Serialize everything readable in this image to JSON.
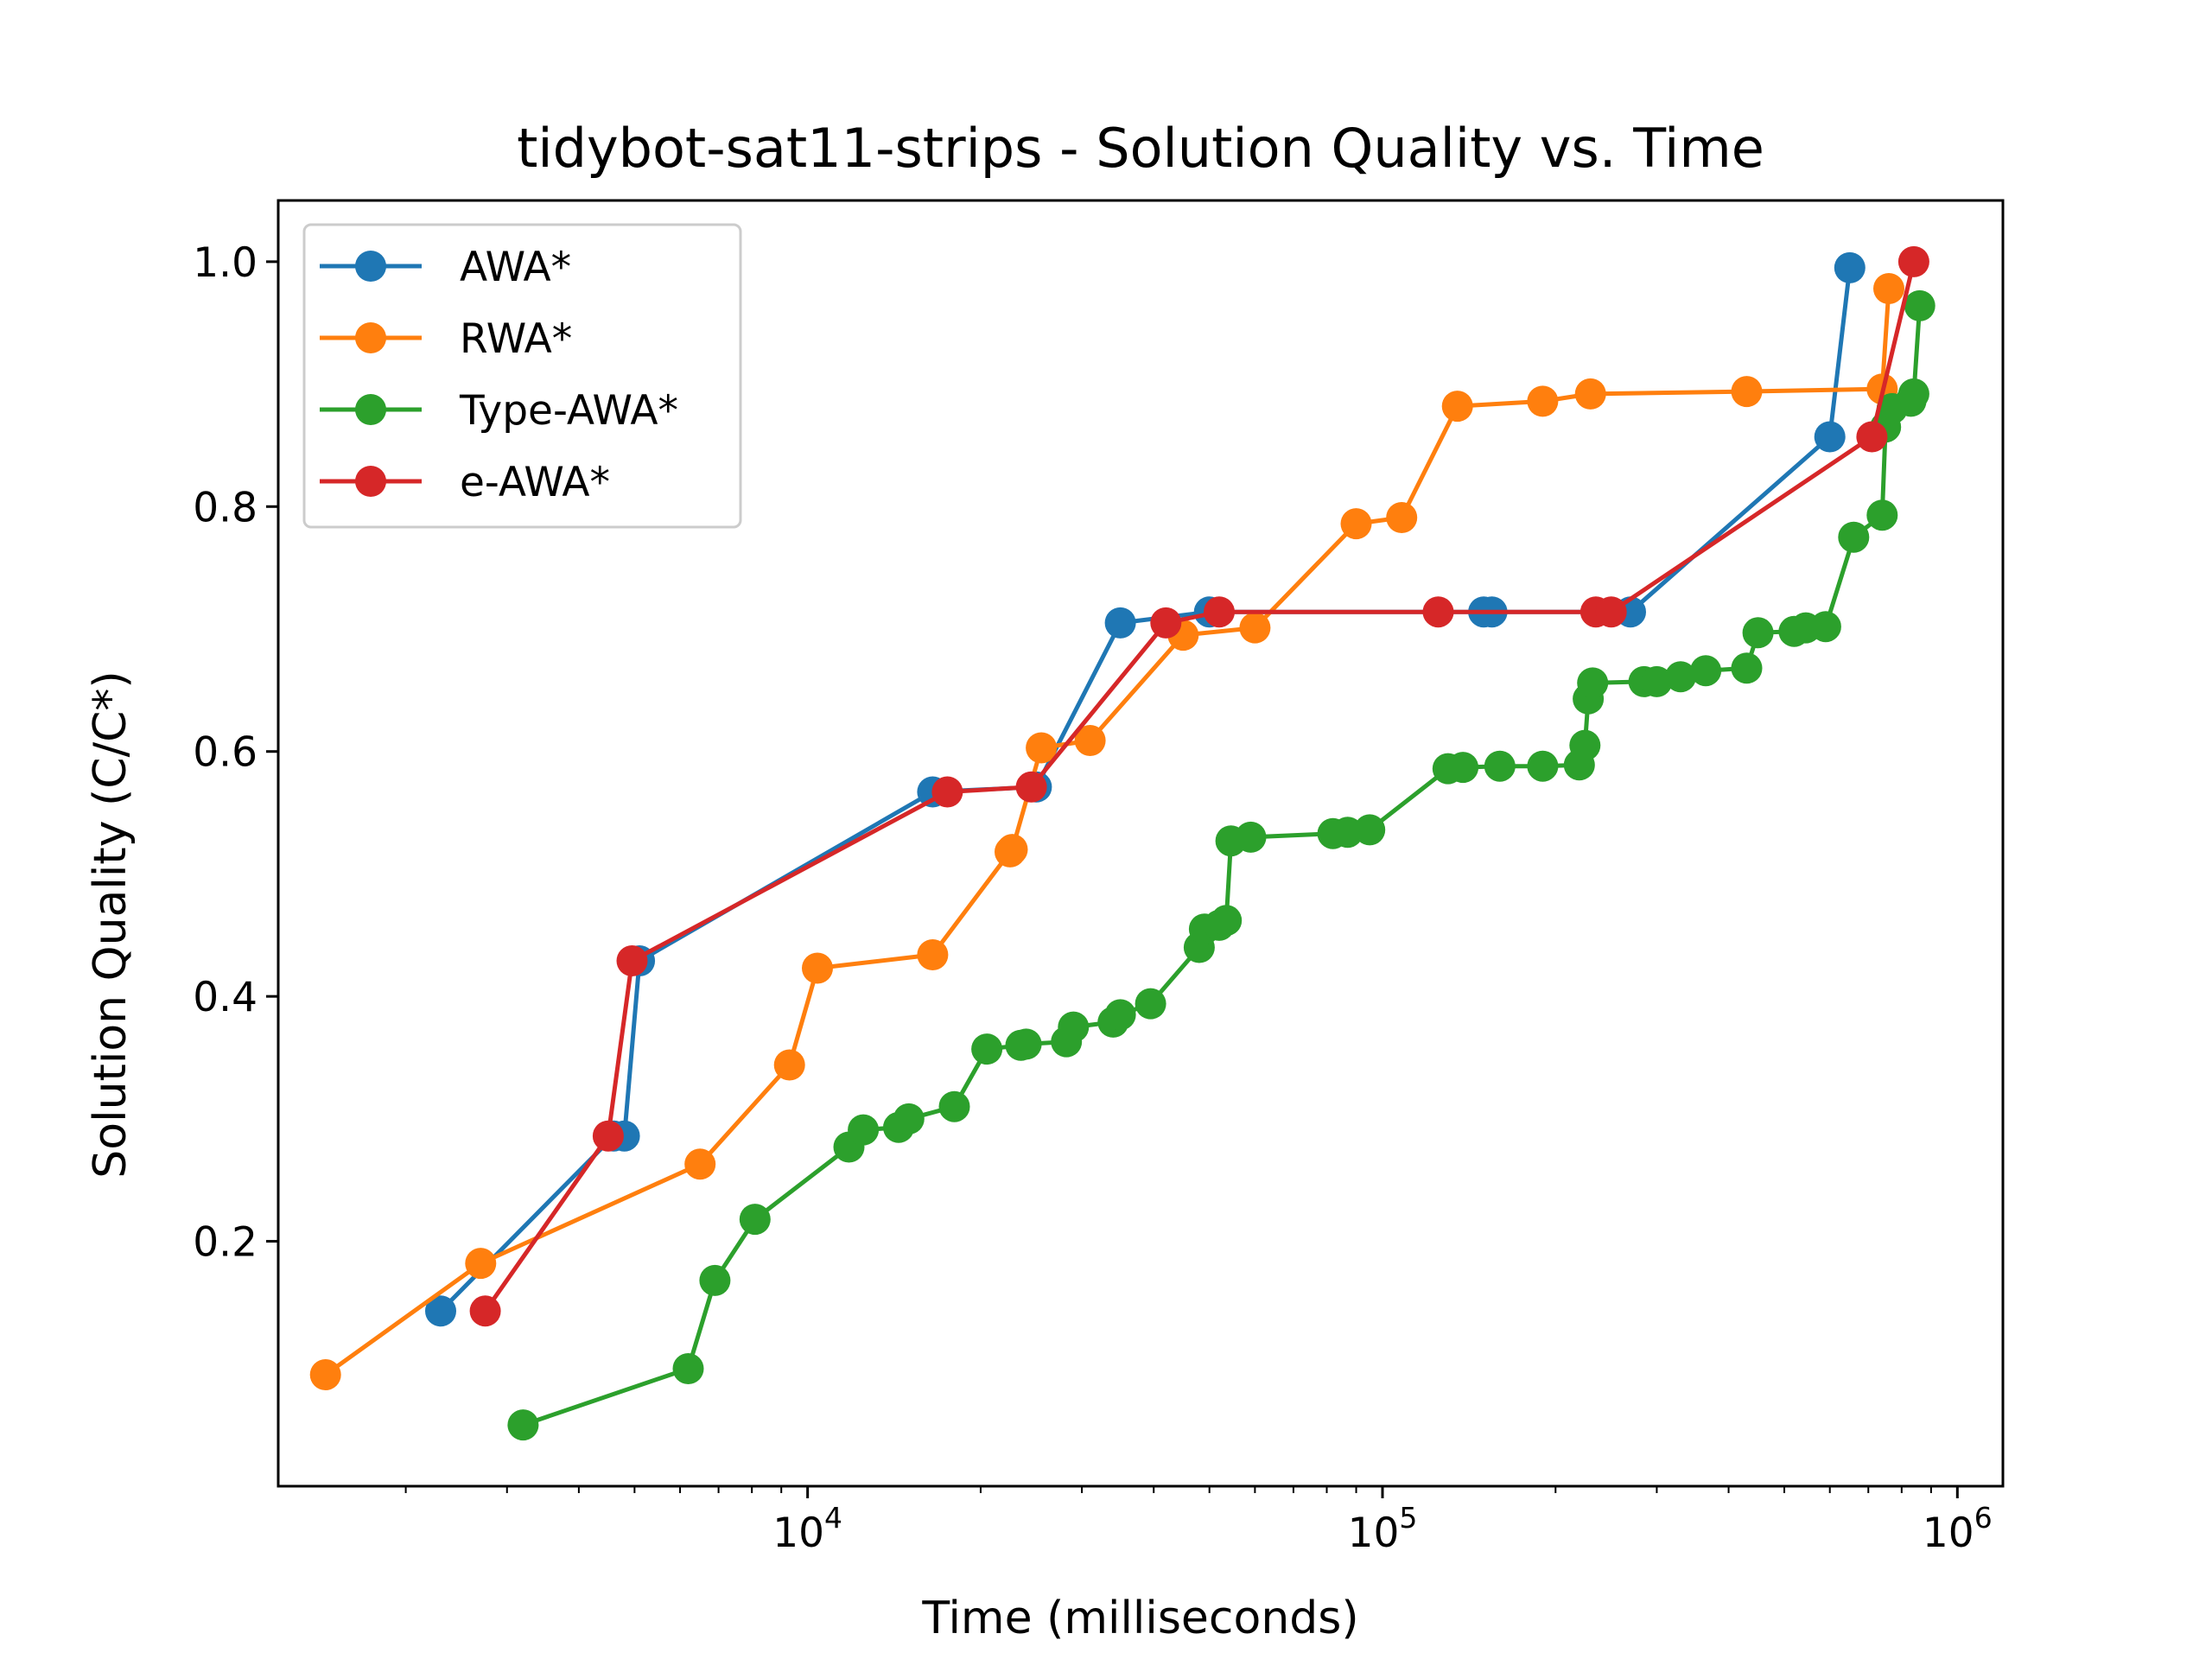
{
  "chart_data": {
    "type": "line",
    "title": "tidybot-sat11-strips - Solution Quality vs. Time",
    "xlabel": "Time (milliseconds)",
    "ylabel": "Solution Quality (C/C*)",
    "xscale": "log",
    "xlim": [
      1200,
      1200000
    ],
    "ylim": [
      0.0,
      1.05
    ],
    "x_ticks": [
      {
        "value": 10000,
        "base": "10",
        "exp": "4"
      },
      {
        "value": 100000,
        "base": "10",
        "exp": "5"
      },
      {
        "value": 1000000,
        "base": "10",
        "exp": "6"
      }
    ],
    "y_ticks": [
      {
        "value": 0.2,
        "label": "0.2"
      },
      {
        "value": 0.4,
        "label": "0.4"
      },
      {
        "value": 0.6,
        "label": "0.6"
      },
      {
        "value": 0.8,
        "label": "0.8"
      },
      {
        "value": 1.0,
        "label": "1.0"
      }
    ],
    "grid": false,
    "legend_position": "upper-left",
    "series": [
      {
        "name": "AWA*",
        "color": "#1f77b4",
        "points": [
          [
            2300,
            0.143
          ],
          [
            4600,
            0.286
          ],
          [
            4800,
            0.286
          ],
          [
            5100,
            0.429
          ],
          [
            16500,
            0.567
          ],
          [
            25000,
            0.571
          ],
          [
            35000,
            0.705
          ],
          [
            50000,
            0.714
          ],
          [
            150000,
            0.714
          ],
          [
            155000,
            0.714
          ],
          [
            270000,
            0.714
          ],
          [
            600000,
            0.857
          ],
          [
            650000,
            0.995
          ]
        ]
      },
      {
        "name": "RWA*",
        "color": "#ff7f0e",
        "points": [
          [
            1450,
            0.091
          ],
          [
            2700,
            0.182
          ],
          [
            6500,
            0.263
          ],
          [
            9300,
            0.344
          ],
          [
            10400,
            0.423
          ],
          [
            16500,
            0.434
          ],
          [
            22500,
            0.518
          ],
          [
            22700,
            0.52
          ],
          [
            25500,
            0.603
          ],
          [
            31000,
            0.609
          ],
          [
            45000,
            0.695
          ],
          [
            60000,
            0.701
          ],
          [
            90000,
            0.786
          ],
          [
            108000,
            0.791
          ],
          [
            135000,
            0.882
          ],
          [
            190000,
            0.886
          ],
          [
            230000,
            0.892
          ],
          [
            430000,
            0.894
          ],
          [
            740000,
            0.896
          ],
          [
            760000,
            0.978
          ]
        ]
      },
      {
        "name": "Type-AWA*",
        "color": "#2ca02c",
        "points": [
          [
            3200,
            0.05
          ],
          [
            6200,
            0.096
          ],
          [
            6900,
            0.168
          ],
          [
            8100,
            0.218
          ],
          [
            11800,
            0.277
          ],
          [
            12500,
            0.291
          ],
          [
            14400,
            0.293
          ],
          [
            15000,
            0.3
          ],
          [
            18000,
            0.31
          ],
          [
            20500,
            0.357
          ],
          [
            23500,
            0.36
          ],
          [
            24000,
            0.361
          ],
          [
            28200,
            0.363
          ],
          [
            29000,
            0.375
          ],
          [
            34000,
            0.379
          ],
          [
            35000,
            0.385
          ],
          [
            39500,
            0.394
          ],
          [
            48000,
            0.44
          ],
          [
            49000,
            0.455
          ],
          [
            52000,
            0.458
          ],
          [
            53500,
            0.462
          ],
          [
            54500,
            0.527
          ],
          [
            59000,
            0.53
          ],
          [
            82000,
            0.533
          ],
          [
            87000,
            0.534
          ],
          [
            95000,
            0.536
          ],
          [
            130000,
            0.586
          ],
          [
            138000,
            0.587
          ],
          [
            160000,
            0.588
          ],
          [
            190000,
            0.588
          ],
          [
            220000,
            0.589
          ],
          [
            225000,
            0.605
          ],
          [
            228000,
            0.643
          ],
          [
            232000,
            0.656
          ],
          [
            285000,
            0.657
          ],
          [
            300000,
            0.657
          ],
          [
            330000,
            0.661
          ],
          [
            365000,
            0.666
          ],
          [
            430000,
            0.668
          ],
          [
            450000,
            0.697
          ],
          [
            520000,
            0.698
          ],
          [
            545000,
            0.701
          ],
          [
            590000,
            0.702
          ],
          [
            660000,
            0.775
          ],
          [
            740000,
            0.793
          ],
          [
            750000,
            0.865
          ],
          [
            770000,
            0.88
          ],
          [
            830000,
            0.886
          ],
          [
            840000,
            0.892
          ],
          [
            860000,
            0.964
          ]
        ]
      },
      {
        "name": "e-AWA*",
        "color": "#d62728",
        "points": [
          [
            2750,
            0.143
          ],
          [
            4500,
            0.286
          ],
          [
            4950,
            0.429
          ],
          [
            17500,
            0.567
          ],
          [
            24500,
            0.571
          ],
          [
            42000,
            0.705
          ],
          [
            52000,
            0.714
          ],
          [
            125000,
            0.714
          ],
          [
            235000,
            0.714
          ],
          [
            250000,
            0.714
          ],
          [
            710000,
            0.857
          ],
          [
            840000,
            1.0
          ]
        ]
      }
    ]
  }
}
